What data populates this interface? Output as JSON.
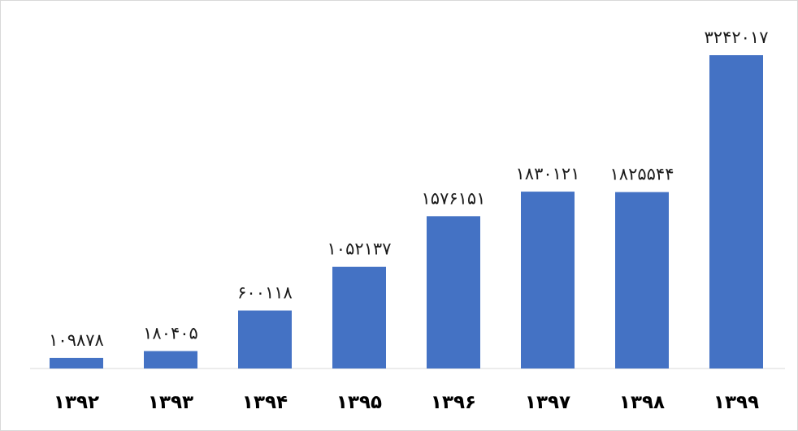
{
  "chart_data": {
    "type": "bar",
    "categories": [
      "۱۳۹۲",
      "۱۳۹۳",
      "۱۳۹۴",
      "۱۳۹۵",
      "۱۳۹۶",
      "۱۳۹۷",
      "۱۳۹۸",
      "۱۳۹۹"
    ],
    "values": [
      109878,
      180405,
      600118,
      1052137,
      1576151,
      1830121,
      1825544,
      3242017
    ],
    "value_labels": [
      "۱۰۹۸۷۸",
      "۱۸۰۴۰۵",
      "۶۰۰۱۱۸",
      "۱۰۵۲۱۳۷",
      "۱۵۷۶۱۵۱",
      "۱۸۳۰۱۲۱",
      "۱۸۲۵۵۴۴",
      "۳۲۴۲۰۱۷"
    ],
    "title": "",
    "xlabel": "",
    "ylabel": "",
    "ylim": [
      0,
      3500000
    ],
    "grid": false,
    "legend": "none",
    "bar_color": "#4472C4"
  }
}
